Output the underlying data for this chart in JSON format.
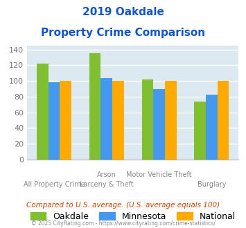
{
  "title_line1": "2019 Oakdale",
  "title_line2": "Property Crime Comparison",
  "categories_upper": [
    "",
    "Arson",
    "Motor Vehicle Theft",
    ""
  ],
  "categories_lower": [
    "All Property Crime",
    "Larceny & Theft",
    "",
    "Burglary"
  ],
  "series": {
    "Oakdale": [
      122,
      135,
      102,
      74
    ],
    "Minnesota": [
      98,
      104,
      90,
      83
    ],
    "National": [
      100,
      100,
      100,
      100
    ]
  },
  "colors": {
    "Oakdale": "#80c030",
    "Minnesota": "#4499ee",
    "National": "#ffaa00"
  },
  "ylim": [
    0,
    145
  ],
  "yticks": [
    0,
    20,
    40,
    60,
    80,
    100,
    120,
    140
  ],
  "bar_width": 0.22,
  "plot_bg": "#dce9f0",
  "grid_color": "#ffffff",
  "title_color": "#1155cc",
  "tick_color": "#777777",
  "label_color": "#888888",
  "legend_fontsize": 9,
  "tick_fontsize": 8,
  "subtitle_text": "Compared to U.S. average. (U.S. average equals 100)",
  "footer_text": "© 2025 CityRating.com - https://www.cityrating.com/crime-statistics/",
  "subtitle_color": "#cc4400",
  "footer_color": "#888888"
}
